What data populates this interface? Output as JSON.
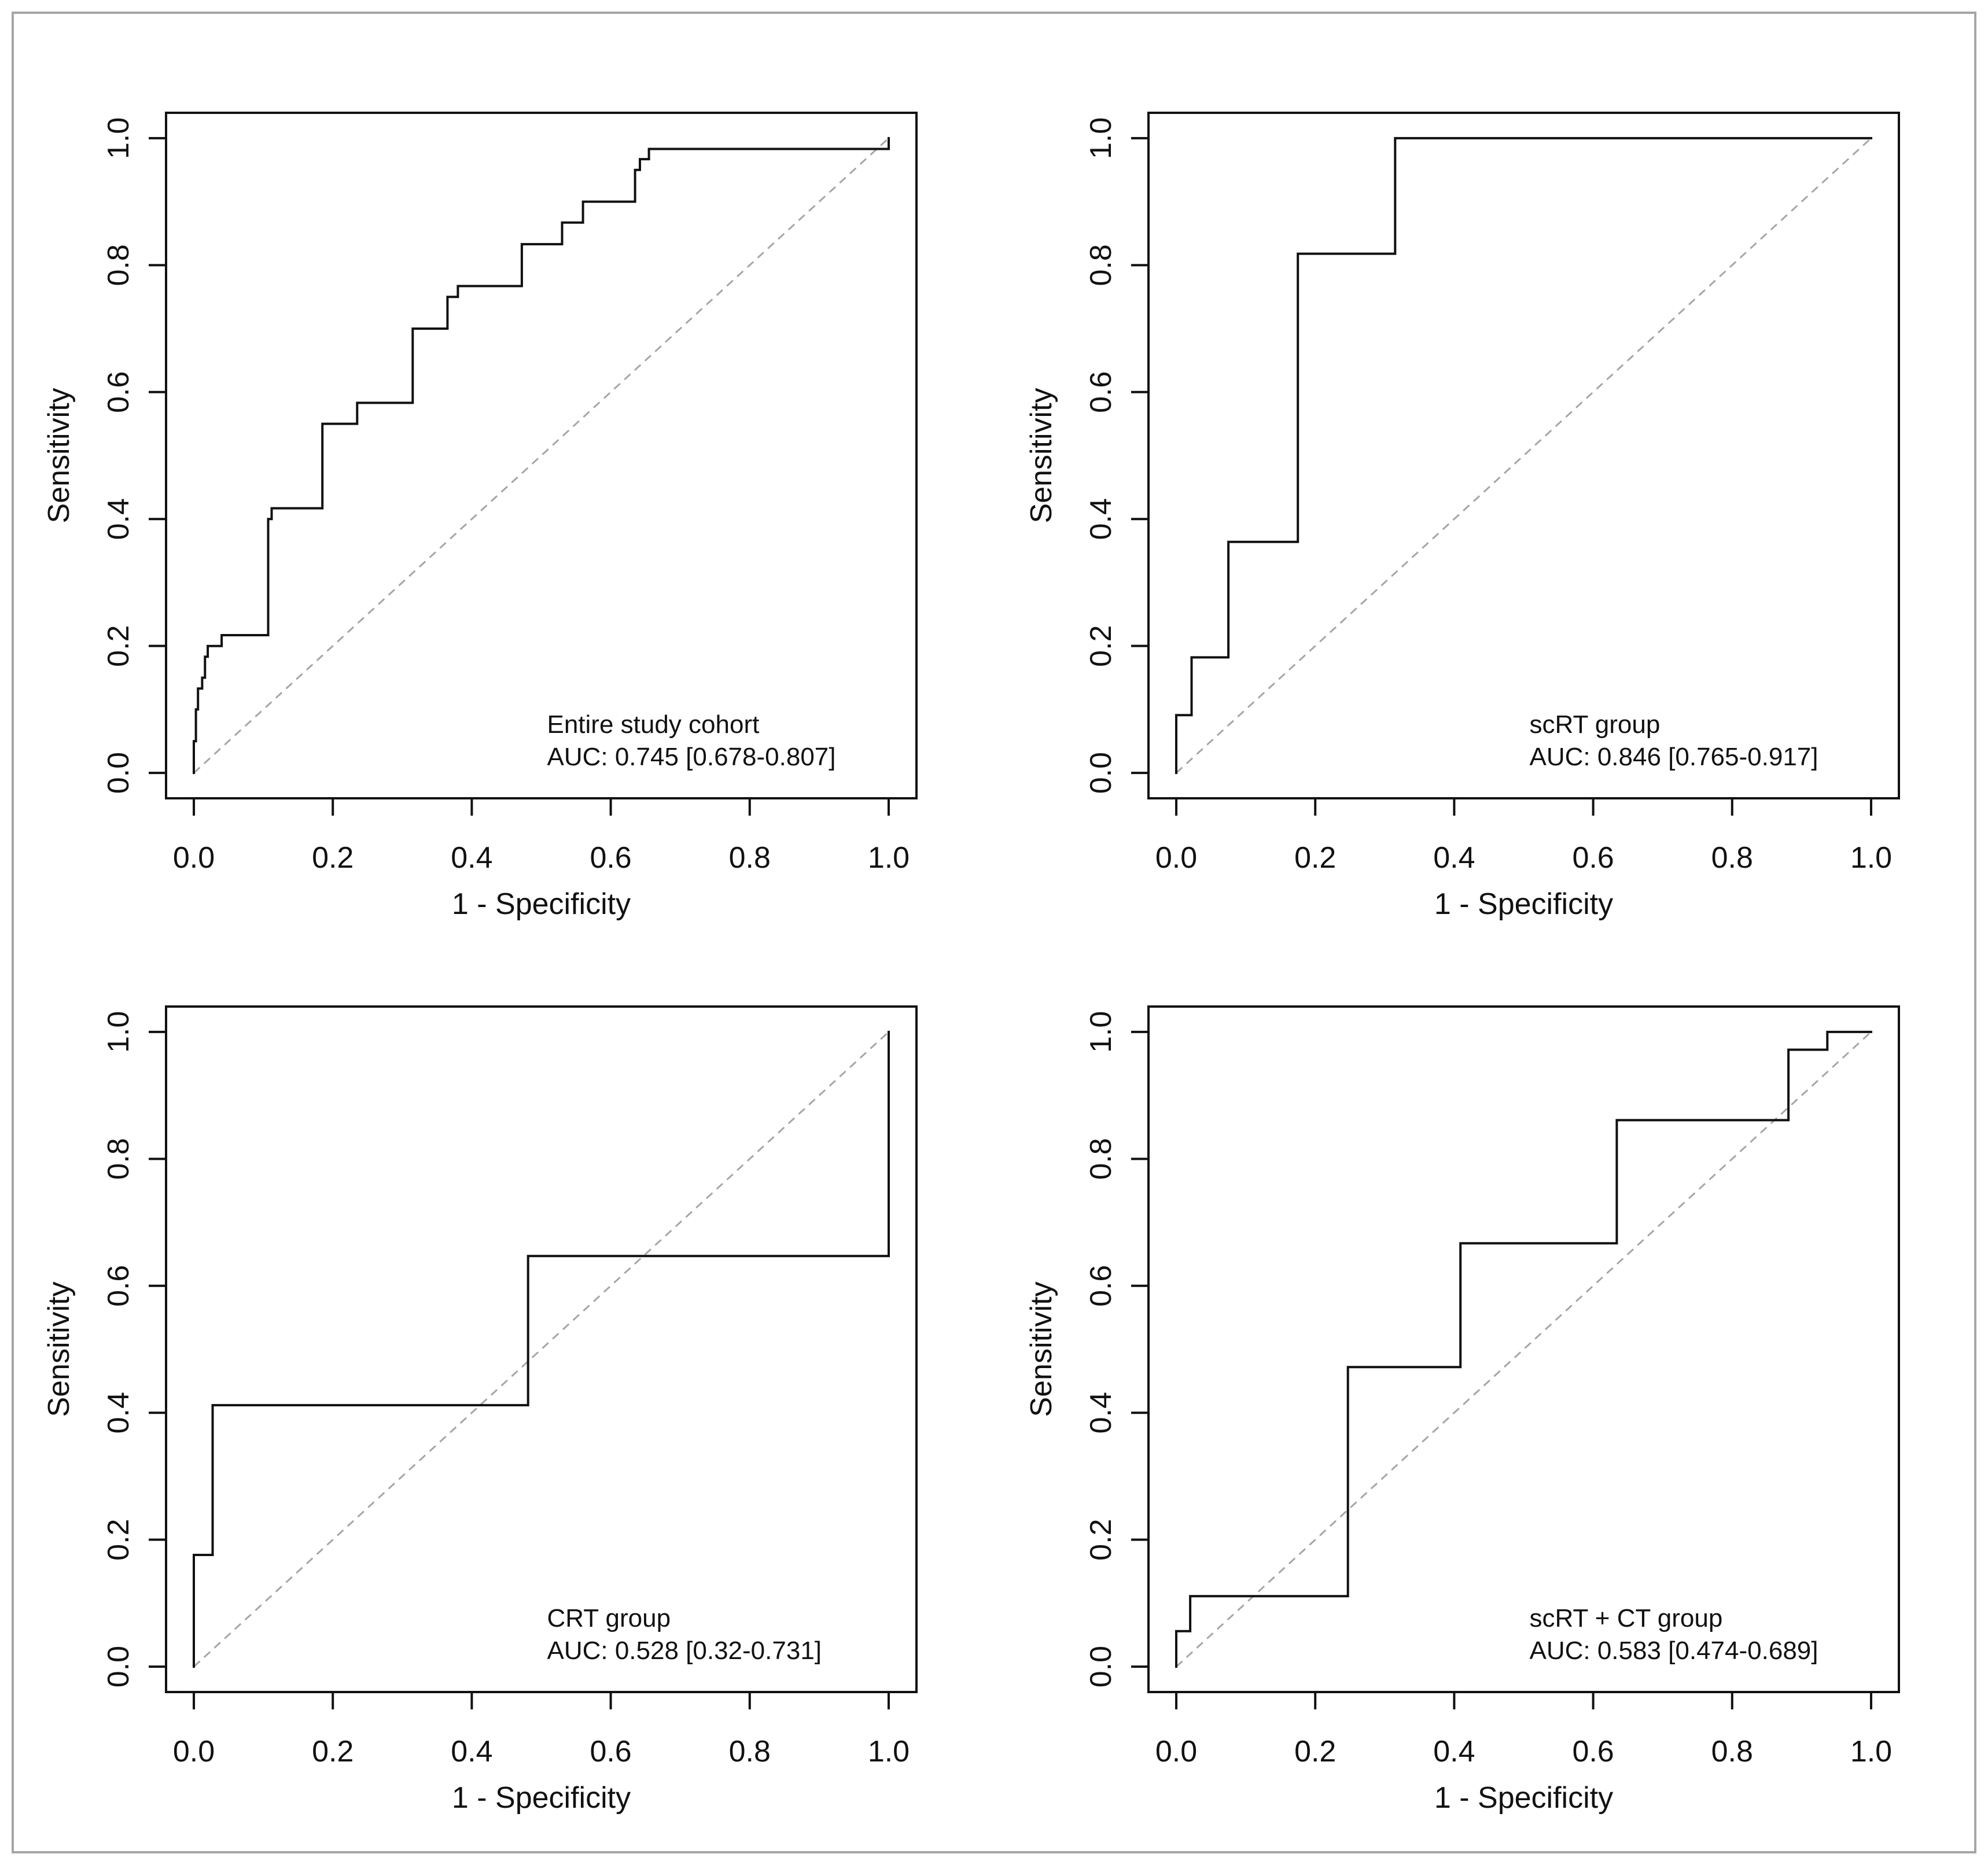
{
  "figure": {
    "border_color": "#a6a6a6",
    "curve_color": "#111111",
    "diagonal_color": "#a6a6a6"
  },
  "chart_data": [
    {
      "type": "line",
      "title": "",
      "xlabel": "1 - Specificity",
      "ylabel": "Sensitivity",
      "xlim": [
        0,
        1
      ],
      "ylim": [
        0,
        1
      ],
      "xticks": [
        "0.0",
        "0.2",
        "0.4",
        "0.6",
        "0.8",
        "1.0"
      ],
      "yticks": [
        "0.0",
        "0.2",
        "0.4",
        "0.6",
        "0.8",
        "1.0"
      ],
      "grid": false,
      "legend_lines": [
        "Entire study cohort",
        "AUC: 0.745 [0.678-0.807]"
      ],
      "legend_position": "bottom-right",
      "reference_line": {
        "name": "chance diagonal",
        "x": [
          0,
          1
        ],
        "y": [
          0,
          1
        ]
      },
      "series": [
        {
          "name": "ROC curve",
          "x": [
            0,
            0,
            0.003,
            0.003,
            0.006,
            0.006,
            0.012,
            0.012,
            0.016,
            0.016,
            0.02,
            0.02,
            0.04,
            0.04,
            0.107,
            0.107,
            0.112,
            0.112,
            0.185,
            0.185,
            0.235,
            0.235,
            0.315,
            0.315,
            0.365,
            0.365,
            0.38,
            0.38,
            0.472,
            0.472,
            0.53,
            0.53,
            0.56,
            0.56,
            0.635,
            0.635,
            0.642,
            0.642,
            0.655,
            0.655,
            1.0,
            1.0
          ],
          "y": [
            0,
            0.05,
            0.05,
            0.1,
            0.1,
            0.133,
            0.133,
            0.15,
            0.15,
            0.183,
            0.183,
            0.2,
            0.2,
            0.217,
            0.217,
            0.4,
            0.4,
            0.417,
            0.417,
            0.55,
            0.55,
            0.583,
            0.583,
            0.7,
            0.7,
            0.75,
            0.75,
            0.767,
            0.767,
            0.833,
            0.833,
            0.867,
            0.867,
            0.9,
            0.9,
            0.95,
            0.95,
            0.967,
            0.967,
            0.983,
            0.983,
            1.0
          ]
        }
      ]
    },
    {
      "type": "line",
      "title": "",
      "xlabel": "1 - Specificity",
      "ylabel": "Sensitivity",
      "xlim": [
        0,
        1
      ],
      "ylim": [
        0,
        1
      ],
      "xticks": [
        "0.0",
        "0.2",
        "0.4",
        "0.6",
        "0.8",
        "1.0"
      ],
      "yticks": [
        "0.0",
        "0.2",
        "0.4",
        "0.6",
        "0.8",
        "1.0"
      ],
      "grid": false,
      "legend_lines": [
        "scRT group",
        "AUC: 0.846 [0.765-0.917]"
      ],
      "legend_position": "bottom-right",
      "reference_line": {
        "name": "chance diagonal",
        "x": [
          0,
          1
        ],
        "y": [
          0,
          1
        ]
      },
      "series": [
        {
          "name": "ROC curve",
          "x": [
            0,
            0,
            0.022,
            0.022,
            0.075,
            0.075,
            0.175,
            0.175,
            0.315,
            0.315,
            1.0
          ],
          "y": [
            0,
            0.091,
            0.091,
            0.182,
            0.182,
            0.364,
            0.364,
            0.818,
            0.818,
            1.0,
            1.0
          ]
        }
      ]
    },
    {
      "type": "line",
      "title": "",
      "xlabel": "1 - Specificity",
      "ylabel": "Sensitivity",
      "xlim": [
        0,
        1
      ],
      "ylim": [
        0,
        1
      ],
      "xticks": [
        "0.0",
        "0.2",
        "0.4",
        "0.6",
        "0.8",
        "1.0"
      ],
      "yticks": [
        "0.0",
        "0.2",
        "0.4",
        "0.6",
        "0.8",
        "1.0"
      ],
      "grid": false,
      "legend_lines": [
        "CRT group",
        "AUC: 0.528 [0.32-0.731]"
      ],
      "legend_position": "bottom-right",
      "reference_line": {
        "name": "chance diagonal",
        "x": [
          0,
          1
        ],
        "y": [
          0,
          1
        ]
      },
      "series": [
        {
          "name": "ROC curve",
          "x": [
            0,
            0,
            0.027,
            0.027,
            0.481,
            0.481,
            1.0,
            1.0
          ],
          "y": [
            0,
            0.176,
            0.176,
            0.412,
            0.412,
            0.647,
            0.647,
            1.0
          ]
        }
      ]
    },
    {
      "type": "line",
      "title": "",
      "xlabel": "1 - Specificity",
      "ylabel": "Sensitivity",
      "xlim": [
        0,
        1
      ],
      "ylim": [
        0,
        1
      ],
      "xticks": [
        "0.0",
        "0.2",
        "0.4",
        "0.6",
        "0.8",
        "1.0"
      ],
      "yticks": [
        "0.0",
        "0.2",
        "0.4",
        "0.6",
        "0.8",
        "1.0"
      ],
      "grid": false,
      "legend_lines": [
        "scRT + CT group",
        "AUC: 0.583 [0.474-0.689]"
      ],
      "legend_position": "bottom-right",
      "reference_line": {
        "name": "chance diagonal",
        "x": [
          0,
          1
        ],
        "y": [
          0,
          1
        ]
      },
      "series": [
        {
          "name": "ROC curve",
          "x": [
            0,
            0,
            0.02,
            0.02,
            0.247,
            0.247,
            0.409,
            0.409,
            0.634,
            0.634,
            0.881,
            0.881,
            0.937,
            0.937,
            1.0
          ],
          "y": [
            0,
            0.056,
            0.056,
            0.111,
            0.111,
            0.472,
            0.472,
            0.667,
            0.667,
            0.861,
            0.861,
            0.972,
            0.972,
            1.0,
            1.0
          ]
        }
      ]
    }
  ]
}
